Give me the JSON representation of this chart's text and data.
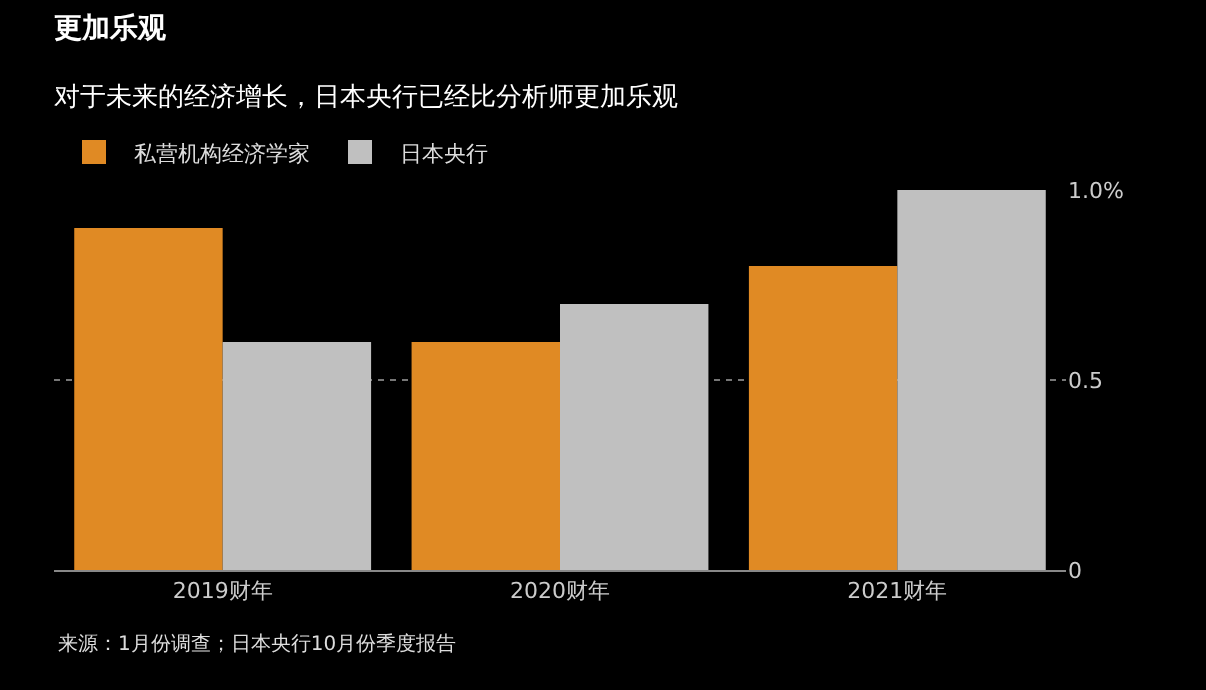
{
  "chart_data": {
    "type": "bar",
    "title": "更加乐观",
    "subtitle": "对于未来的经济增长，日本央行已经比分析师更加乐观",
    "categories": [
      "2019财年",
      "2020财年",
      "2021财年"
    ],
    "series": [
      {
        "name": "私营机构经济学家",
        "color": "#e08a24",
        "values": [
          0.9,
          0.6,
          0.8
        ]
      },
      {
        "name": "日本央行",
        "color": "#c0c0c0",
        "values": [
          0.6,
          0.7,
          1.0
        ]
      }
    ],
    "ylim": [
      0,
      1.0
    ],
    "yticks": [
      0,
      0.5,
      {
        "value": 1.0,
        "label": "1.0%"
      }
    ],
    "grid": "y",
    "legend": "top left",
    "annotations": [
      "来源：1月份调查；日本央行10月份季度报告"
    ]
  }
}
